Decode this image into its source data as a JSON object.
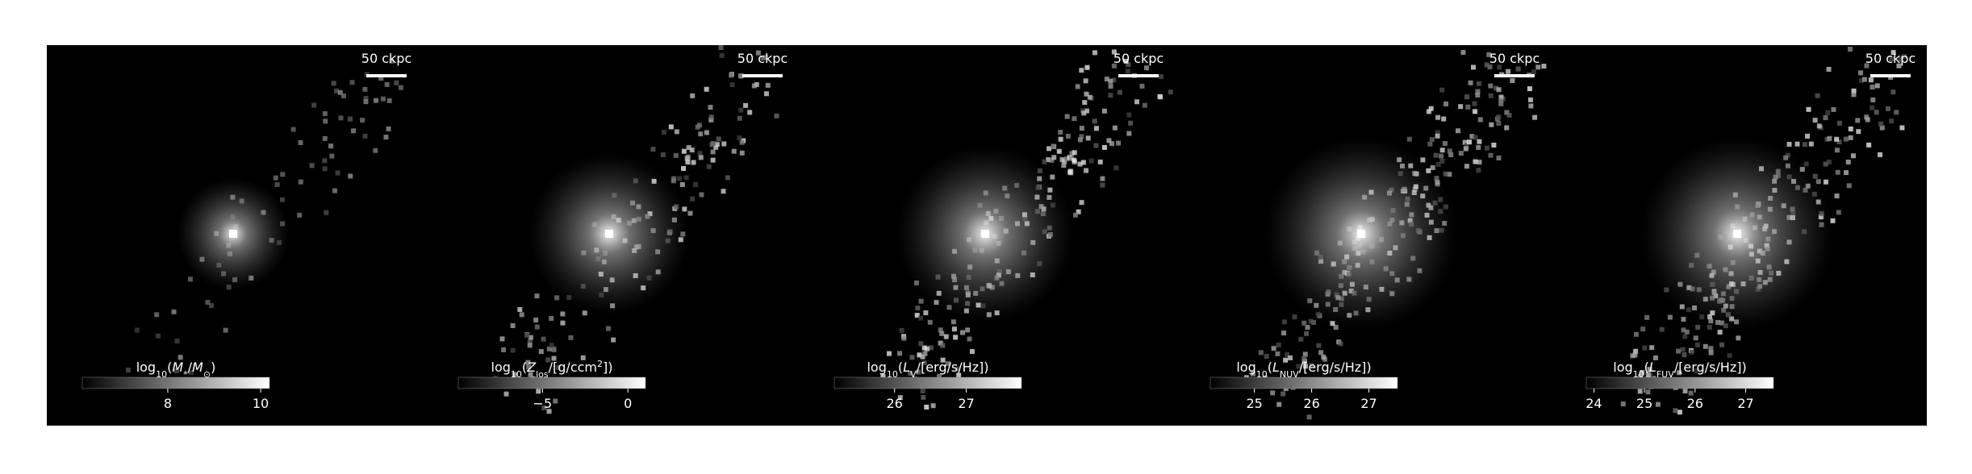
{
  "panels": [
    {
      "scalebar": "50 ckpc",
      "colorbar_label": [
        {
          "text": "log"
        },
        {
          "text": "10",
          "style": "sub"
        },
        {
          "text": "("
        },
        {
          "text": "M",
          "style": "italic"
        },
        {
          "text": "*",
          "style": "sub"
        },
        {
          "text": "/"
        },
        {
          "text": "M",
          "style": "italic"
        },
        {
          "text": "⊙",
          "style": "sub"
        },
        {
          "text": ")"
        }
      ],
      "clim": [
        6.16,
        10.19
      ],
      "ticks": [
        8,
        10
      ]
    },
    {
      "scalebar": "50 ckpc",
      "colorbar_label": [
        {
          "text": "log"
        },
        {
          "text": "10",
          "style": "sub"
        },
        {
          "text": "("
        },
        {
          "text": "Z",
          "style": "italic"
        },
        {
          "text": "los",
          "style": "sub"
        },
        {
          "text": "/[g/ccm"
        },
        {
          "text": "2",
          "style": "sup"
        },
        {
          "text": "])"
        }
      ],
      "clim": [
        -9.93,
        1.03
      ],
      "ticks": [
        {
          "value": -5,
          "label": "−5"
        },
        0
      ]
    },
    {
      "scalebar": "50 ckpc",
      "colorbar_label": [
        {
          "text": "log"
        },
        {
          "text": "10",
          "style": "sub"
        },
        {
          "text": "("
        },
        {
          "text": "L",
          "style": "italic"
        },
        {
          "text": "V",
          "style": "sub"
        },
        {
          "text": "/[erg/s/Hz])"
        }
      ],
      "clim": [
        25.16,
        27.77
      ],
      "ticks": [
        26,
        27
      ]
    },
    {
      "scalebar": "50 ckpc",
      "colorbar_label": [
        {
          "text": "log"
        },
        {
          "text": "10",
          "style": "sub"
        },
        {
          "text": "("
        },
        {
          "text": "L",
          "style": "italic"
        },
        {
          "text": "NUV",
          "style": "sub"
        },
        {
          "text": "/[erg/s/Hz])"
        }
      ],
      "clim": [
        24.23,
        27.5
      ],
      "ticks": [
        25,
        26,
        27
      ]
    },
    {
      "scalebar": "50 ckpc",
      "colorbar_label": [
        {
          "text": "log"
        },
        {
          "text": "10",
          "style": "sub"
        },
        {
          "text": "("
        },
        {
          "text": "L",
          "style": "italic"
        },
        {
          "text": "FUV",
          "style": "sub"
        },
        {
          "text": "/[erg/s/Hz])"
        }
      ],
      "clim": [
        23.85,
        27.55
      ],
      "ticks": [
        24,
        25,
        26,
        27
      ]
    }
  ]
}
